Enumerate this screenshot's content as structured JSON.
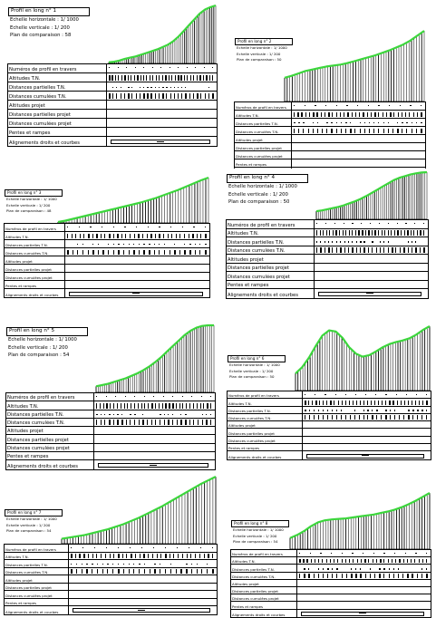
{
  "sheets": [
    {
      "id": "sheet-1",
      "title": "Profil en long n°  1",
      "scale_h": "Echelle horizontale :   1/ 1000",
      "scale_v": "Echelle verticale :      1/ 200",
      "plan": "Plan de comparaison : 58",
      "rows": [
        "Numéros de profil en travers",
        "Altitudes T.N.",
        "Distances partielles T.N.",
        "Distances cumulées T.N.",
        "Altitudes projet",
        "Distances partielles projet",
        "Distances cumulées projet",
        "Pentes et rampes",
        "Alignements droits et courbes"
      ],
      "terrain": [
        0.02,
        0.03,
        0.05,
        0.08,
        0.1,
        0.12,
        0.15,
        0.18,
        0.21,
        0.24,
        0.28,
        0.32,
        0.38,
        0.46,
        0.56,
        0.66,
        0.76,
        0.86,
        0.93,
        0.97,
        1.0
      ]
    },
    {
      "id": "sheet-2",
      "title": "Profil en long n°  2",
      "scale_h": "Echelle horizontale :   1/ 1000",
      "scale_v": "Echelle verticale :      1/ 200",
      "plan": "Plan de comparaison : 50",
      "rows": [
        "Numéros de profil en travers",
        "Altitudes T.N.",
        "Distances partielles T.N.",
        "Distances cumulées T.N.",
        "Altitudes projet",
        "Distances partielles projet",
        "Distances cumulées projet",
        "Pentes et rampes",
        "Alignements droits et courbes"
      ],
      "terrain": [
        0.04,
        0.08,
        0.13,
        0.18,
        0.21,
        0.24,
        0.27,
        0.29,
        0.31,
        0.34,
        0.38,
        0.42,
        0.46,
        0.5,
        0.55,
        0.6,
        0.66,
        0.72,
        0.8,
        0.9,
        1.0
      ]
    },
    {
      "id": "sheet-3",
      "title": "Profil en long n°  3",
      "scale_h": "Echelle horizontale :   1/ 1000",
      "scale_v": "Echelle verticale :      1/ 200",
      "plan": "Plan de comparaison : 48",
      "rows": [
        "Numéros de profil en travers",
        "Altitudes T.N.",
        "Distances partielles T.N.",
        "Distances cumulées T.N.",
        "Altitudes projet",
        "Distances partielles projet",
        "Distances cumulées projet",
        "Pentes et rampes",
        "Alignements droits et courbes"
      ],
      "terrain": [
        0.02,
        0.05,
        0.09,
        0.13,
        0.17,
        0.21,
        0.25,
        0.29,
        0.33,
        0.37,
        0.41,
        0.45,
        0.5,
        0.55,
        0.61,
        0.67,
        0.73,
        0.8,
        0.87,
        0.94,
        1.0
      ]
    },
    {
      "id": "sheet-4",
      "title": "Profil en long n°  4",
      "scale_h": "Echelle horizontale :   1/ 1000",
      "scale_v": "Echelle verticale :      1/ 200",
      "plan": "Plan de comparaison : 50",
      "rows": [
        "Numéros de profil en travers",
        "Altitudes T.N.",
        "Distances partielles T.N.",
        "Distances cumulées T.N.",
        "Altitudes projet",
        "Distances partielles projet",
        "Distances cumulées projet",
        "Pentes et rampes",
        "Alignements droits et courbes"
      ],
      "terrain": [
        0.02,
        0.04,
        0.07,
        0.1,
        0.13,
        0.17,
        0.22,
        0.27,
        0.33,
        0.4,
        0.48,
        0.56,
        0.64,
        0.72,
        0.8,
        0.86,
        0.9,
        0.94,
        0.97,
        0.99,
        1.0
      ]
    },
    {
      "id": "sheet-5",
      "title": "Profil en long n°  5",
      "scale_h": "Echelle horizontale :   1/ 1000",
      "scale_v": "Echelle verticale :      1/ 200",
      "plan": "Plan de comparaison : 54",
      "rows": [
        "Numéros de profil en travers",
        "Altitudes T.N.",
        "Distances partielles T.N.",
        "Distances cumulées T.N.",
        "Altitudes projet",
        "Distances partielles projet",
        "Distances cumulées projet",
        "Pentes et rampes",
        "Alignements droits et courbes"
      ],
      "terrain": [
        0.01,
        0.03,
        0.05,
        0.08,
        0.11,
        0.14,
        0.18,
        0.22,
        0.27,
        0.33,
        0.4,
        0.48,
        0.57,
        0.66,
        0.75,
        0.84,
        0.91,
        0.96,
        0.99,
        1.0,
        1.0
      ]
    },
    {
      "id": "sheet-6",
      "title": "Profil en long n°  6",
      "scale_h": "Echelle horizontale :   1/ 1000",
      "scale_v": "Echelle verticale :      1/ 200",
      "plan": "Plan de comparaison : 50",
      "rows": [
        "Numéros de profil en travers",
        "Altitudes T.N.",
        "Distances partielles T.N.",
        "Distances cumulées T.N.",
        "Altitudes projet",
        "Distances partielles projet",
        "Distances cumulées projet",
        "Pentes et rampes",
        "Alignements droits et courbes"
      ],
      "terrain": [
        0.1,
        0.22,
        0.4,
        0.62,
        0.82,
        0.92,
        0.9,
        0.78,
        0.6,
        0.48,
        0.42,
        0.45,
        0.52,
        0.6,
        0.66,
        0.7,
        0.73,
        0.77,
        0.84,
        0.93,
        1.0
      ]
    },
    {
      "id": "sheet-7",
      "title": "Profil en long n°  7",
      "scale_h": "Echelle horizontale :   1/ 1000",
      "scale_v": "Echelle verticale :      1/ 200",
      "plan": "Plan de comparaison : 54",
      "rows": [
        "Numéros de profil en travers",
        "Altitudes T.N.",
        "Distances partielles T.N.",
        "Distances cumulées T.N.",
        "Altitudes projet",
        "Distances partielles projet",
        "Distances cumulées projet",
        "Pentes et rampes",
        "Alignements droits et courbes"
      ],
      "terrain": [
        0.02,
        0.04,
        0.06,
        0.08,
        0.11,
        0.14,
        0.17,
        0.21,
        0.25,
        0.3,
        0.35,
        0.41,
        0.47,
        0.53,
        0.6,
        0.67,
        0.74,
        0.81,
        0.88,
        0.94,
        1.0
      ]
    },
    {
      "id": "sheet-8",
      "title": "Profil en long n°  8",
      "scale_h": "Echelle horizontale :   1/ 1000",
      "scale_v": "Echelle verticale :      1/ 200",
      "plan": "Plan de comparaison : 54",
      "rows": [
        "Numéros de profil en travers",
        "Altitudes T.N.",
        "Distances partielles T.N.",
        "Distances cumulées T.N.",
        "Altitudes projet",
        "Distances partielles projet",
        "Distances cumulées projet",
        "Pentes et rampes",
        "Alignements droits et courbes"
      ],
      "terrain": [
        0.08,
        0.14,
        0.22,
        0.32,
        0.4,
        0.44,
        0.46,
        0.47,
        0.48,
        0.5,
        0.52,
        0.54,
        0.56,
        0.59,
        0.62,
        0.66,
        0.71,
        0.77,
        0.84,
        0.92,
        1.0
      ]
    }
  ],
  "style": {
    "terrain_color": "#3cd63c",
    "ink": "#000000",
    "paper": "#ffffff"
  }
}
